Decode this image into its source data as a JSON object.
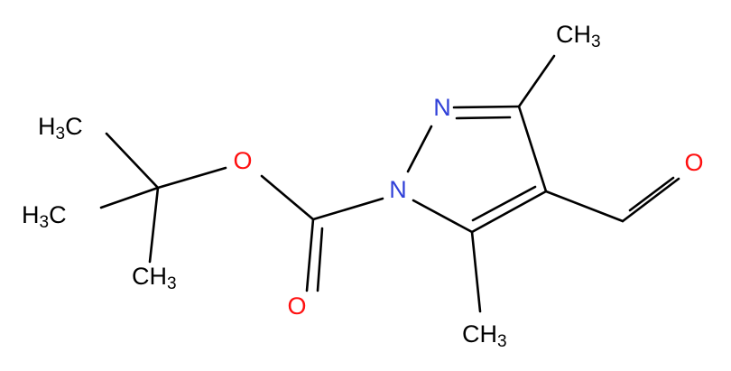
{
  "atoms": {
    "methyl_top_right": "CH3",
    "nitrogen_2": "N",
    "nitrogen_1": "N",
    "aldehyde_oxygen": "O",
    "ester_oxygen": "O",
    "carbonyl_oxygen": "O",
    "methyl_bottom_ring": "CH3",
    "tbutyl_methyl_top": "H3C",
    "tbutyl_methyl_middle": "H3C",
    "tbutyl_methyl_bottom": "CH3"
  }
}
